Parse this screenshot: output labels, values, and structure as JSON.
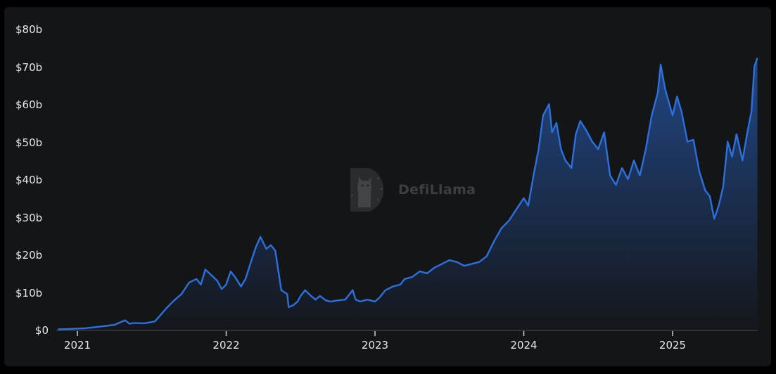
{
  "watermark": {
    "text": "DefiLlama",
    "icon": "llama-logo-icon"
  },
  "colors": {
    "line": "#2c70de",
    "fill_top": "#2c70de",
    "background": "#141517",
    "axis": "#3a3b3e",
    "text": "#e8e8e8"
  },
  "chart_data": {
    "type": "area",
    "title": "",
    "xlabel": "",
    "ylabel": "",
    "y_tick_labels": [
      "$0",
      "$10b",
      "$20b",
      "$30b",
      "$40b",
      "$50b",
      "$60b",
      "$70b",
      "$80b"
    ],
    "x_tick_labels": [
      "2021",
      "2022",
      "2023",
      "2024",
      "2025"
    ],
    "ylim": [
      0,
      80
    ],
    "xlim": [
      2020.87,
      2025.57
    ],
    "grid": false,
    "legend": null,
    "units": "USD billions",
    "series": [
      {
        "name": "Value",
        "x": [
          2020.87,
          2020.95,
          2021.05,
          2021.15,
          2021.25,
          2021.32,
          2021.35,
          2021.38,
          2021.45,
          2021.52,
          2021.55,
          2021.6,
          2021.65,
          2021.7,
          2021.75,
          2021.8,
          2021.83,
          2021.86,
          2021.9,
          2021.94,
          2021.97,
          2022.0,
          2022.03,
          2022.06,
          2022.1,
          2022.13,
          2022.17,
          2022.2,
          2022.23,
          2022.27,
          2022.3,
          2022.33,
          2022.37,
          2022.41,
          2022.42,
          2022.45,
          2022.48,
          2022.5,
          2022.53,
          2022.57,
          2022.6,
          2022.63,
          2022.67,
          2022.7,
          2022.75,
          2022.8,
          2022.85,
          2022.87,
          2022.9,
          2022.95,
          2023.0,
          2023.03,
          2023.07,
          2023.12,
          2023.17,
          2023.2,
          2023.25,
          2023.3,
          2023.35,
          2023.4,
          2023.45,
          2023.5,
          2023.55,
          2023.6,
          2023.65,
          2023.7,
          2023.75,
          2023.8,
          2023.85,
          2023.9,
          2023.95,
          2024.0,
          2024.03,
          2024.07,
          2024.1,
          2024.13,
          2024.17,
          2024.19,
          2024.22,
          2024.25,
          2024.28,
          2024.32,
          2024.35,
          2024.38,
          2024.42,
          2024.46,
          2024.5,
          2024.54,
          2024.58,
          2024.62,
          2024.66,
          2024.7,
          2024.74,
          2024.78,
          2024.82,
          2024.86,
          2024.9,
          2024.92,
          2024.95,
          2025.0,
          2025.03,
          2025.06,
          2025.1,
          2025.14,
          2025.18,
          2025.22,
          2025.25,
          2025.28,
          2025.31,
          2025.34,
          2025.37,
          2025.4,
          2025.43,
          2025.47,
          2025.5,
          2025.53,
          2025.55,
          2025.57
        ],
        "values": [
          0.1,
          0.2,
          0.4,
          0.8,
          1.3,
          2.5,
          1.6,
          1.8,
          1.7,
          2.2,
          3.5,
          5.8,
          7.8,
          9.5,
          12.5,
          13.5,
          12.0,
          16.0,
          14.5,
          13.0,
          10.8,
          12.0,
          15.5,
          14.0,
          11.5,
          13.5,
          18.5,
          22.0,
          24.7,
          21.5,
          22.5,
          21.0,
          10.5,
          9.5,
          6.0,
          6.5,
          7.5,
          9.0,
          10.5,
          9.0,
          8.0,
          9.0,
          7.8,
          7.5,
          7.8,
          8.0,
          10.5,
          8.0,
          7.5,
          8.0,
          7.5,
          8.5,
          10.5,
          11.5,
          12.0,
          13.5,
          14.0,
          15.5,
          15.0,
          16.5,
          17.5,
          18.5,
          18.0,
          17.0,
          17.5,
          18.0,
          19.5,
          23.5,
          27.0,
          29.0,
          32.0,
          35.0,
          33.0,
          42.0,
          48.0,
          57.0,
          60.0,
          52.5,
          55.0,
          48.0,
          45.0,
          43.0,
          52.0,
          55.5,
          53.0,
          50.0,
          48.0,
          52.5,
          41.0,
          38.5,
          43.0,
          40.0,
          45.0,
          41.0,
          48.0,
          57.0,
          63.0,
          70.5,
          64.0,
          57.0,
          62.0,
          58.0,
          50.0,
          50.5,
          42.0,
          37.0,
          35.5,
          29.5,
          33.0,
          38.0,
          50.0,
          46.0,
          52.0,
          45.0,
          52.0,
          58.0,
          70.0,
          72.3
        ]
      }
    ]
  }
}
